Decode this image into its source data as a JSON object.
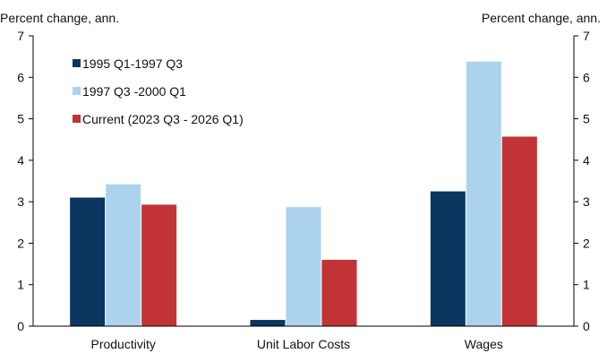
{
  "chart_data": {
    "type": "bar",
    "title": "",
    "ylabel_left": "Percent change, ann.",
    "ylabel_right": "Percent change, ann.",
    "xlabel": "",
    "categories": [
      "Productivity",
      "Unit Labor Costs",
      "Wages"
    ],
    "yticks": [
      "0",
      "1",
      "2",
      "3",
      "4",
      "5",
      "6",
      "7"
    ],
    "ylim": [
      0,
      7
    ],
    "grid": false,
    "legend_position": "top-left",
    "series": [
      {
        "name": "1995 Q1-1997 Q3",
        "color": "#0b3660",
        "values": [
          3.1,
          0.15,
          3.25
        ]
      },
      {
        "name": "1997 Q3 -2000 Q1",
        "color": "#acd3ee",
        "values": [
          3.42,
          2.87,
          6.38
        ]
      },
      {
        "name": "Current (2023 Q3 - 2026 Q1)",
        "color": "#c23335",
        "values": [
          2.93,
          1.6,
          4.57
        ]
      }
    ]
  }
}
